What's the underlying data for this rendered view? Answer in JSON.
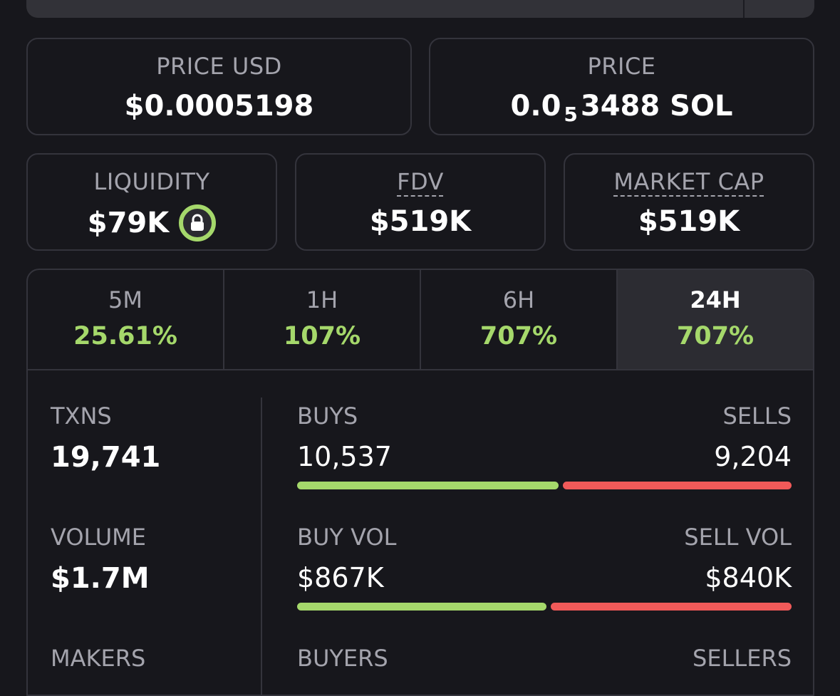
{
  "cards": {
    "price_usd": {
      "label": "PRICE USD",
      "value": "$0.0005198"
    },
    "price_sol": {
      "label": "PRICE",
      "prefix": "0.0",
      "subscript": "5",
      "suffix": "3488 SOL"
    },
    "liquidity": {
      "label": "LIQUIDITY",
      "value": "$79K",
      "icon": "lock-icon"
    },
    "fdv": {
      "label": "FDV",
      "value": "$519K"
    },
    "market_cap": {
      "label": "MARKET CAP",
      "value": "$519K"
    }
  },
  "timeframes": [
    {
      "label": "5M",
      "change": "25.61%"
    },
    {
      "label": "1H",
      "change": "107%"
    },
    {
      "label": "6H",
      "change": "707%"
    },
    {
      "label": "24H",
      "change": "707%",
      "active": true
    }
  ],
  "stats": {
    "txns": {
      "label": "TXNS",
      "value": "19,741"
    },
    "volume": {
      "label": "VOLUME",
      "value": "$1.7M"
    },
    "makers": {
      "label": "MAKERS"
    },
    "buys": {
      "label": "BUYS",
      "value": "10,537",
      "ratio": 0.534
    },
    "sells": {
      "label": "SELLS",
      "value": "9,204"
    },
    "buy_vol": {
      "label": "BUY VOL",
      "value": "$867K",
      "ratio": 0.508
    },
    "sell_vol": {
      "label": "SELL VOL",
      "value": "$840K"
    },
    "buyers": {
      "label": "BUYERS"
    },
    "sellers": {
      "label": "SELLERS"
    }
  },
  "colors": {
    "positive": "#a5d86b",
    "negative": "#f15a59",
    "background": "#17171c",
    "border": "#34343c"
  }
}
